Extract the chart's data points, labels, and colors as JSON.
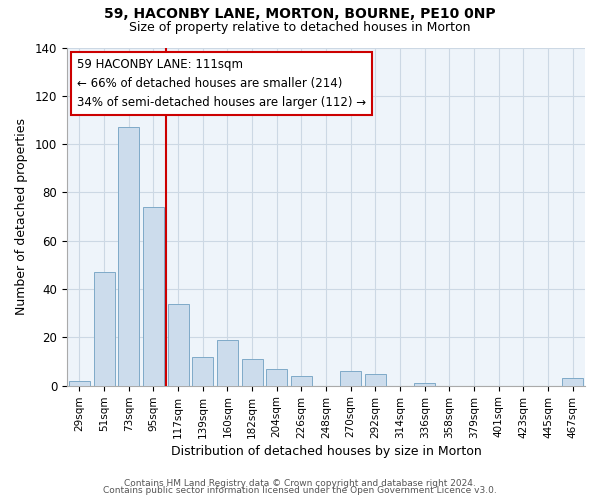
{
  "title": "59, HACONBY LANE, MORTON, BOURNE, PE10 0NP",
  "subtitle": "Size of property relative to detached houses in Morton",
  "xlabel": "Distribution of detached houses by size in Morton",
  "ylabel": "Number of detached properties",
  "bar_color": "#ccdcec",
  "bar_edge_color": "#7faac8",
  "vline_color": "#cc0000",
  "vline_x": 3.5,
  "categories": [
    "29sqm",
    "51sqm",
    "73sqm",
    "95sqm",
    "117sqm",
    "139sqm",
    "160sqm",
    "182sqm",
    "204sqm",
    "226sqm",
    "248sqm",
    "270sqm",
    "292sqm",
    "314sqm",
    "336sqm",
    "358sqm",
    "379sqm",
    "401sqm",
    "423sqm",
    "445sqm",
    "467sqm"
  ],
  "values": [
    2,
    47,
    107,
    74,
    34,
    12,
    19,
    11,
    7,
    4,
    0,
    6,
    5,
    0,
    1,
    0,
    0,
    0,
    0,
    0,
    3
  ],
  "ylim": [
    0,
    140
  ],
  "yticks": [
    0,
    20,
    40,
    60,
    80,
    100,
    120,
    140
  ],
  "annotation_title": "59 HACONBY LANE: 111sqm",
  "annotation_line1": "← 66% of detached houses are smaller (214)",
  "annotation_line2": "34% of semi-detached houses are larger (112) →",
  "footer1": "Contains HM Land Registry data © Crown copyright and database right 2024.",
  "footer2": "Contains public sector information licensed under the Open Government Licence v3.0.",
  "background_color": "#ffffff",
  "grid_color": "#ccd8e4",
  "plot_bg_color": "#eef4fa"
}
